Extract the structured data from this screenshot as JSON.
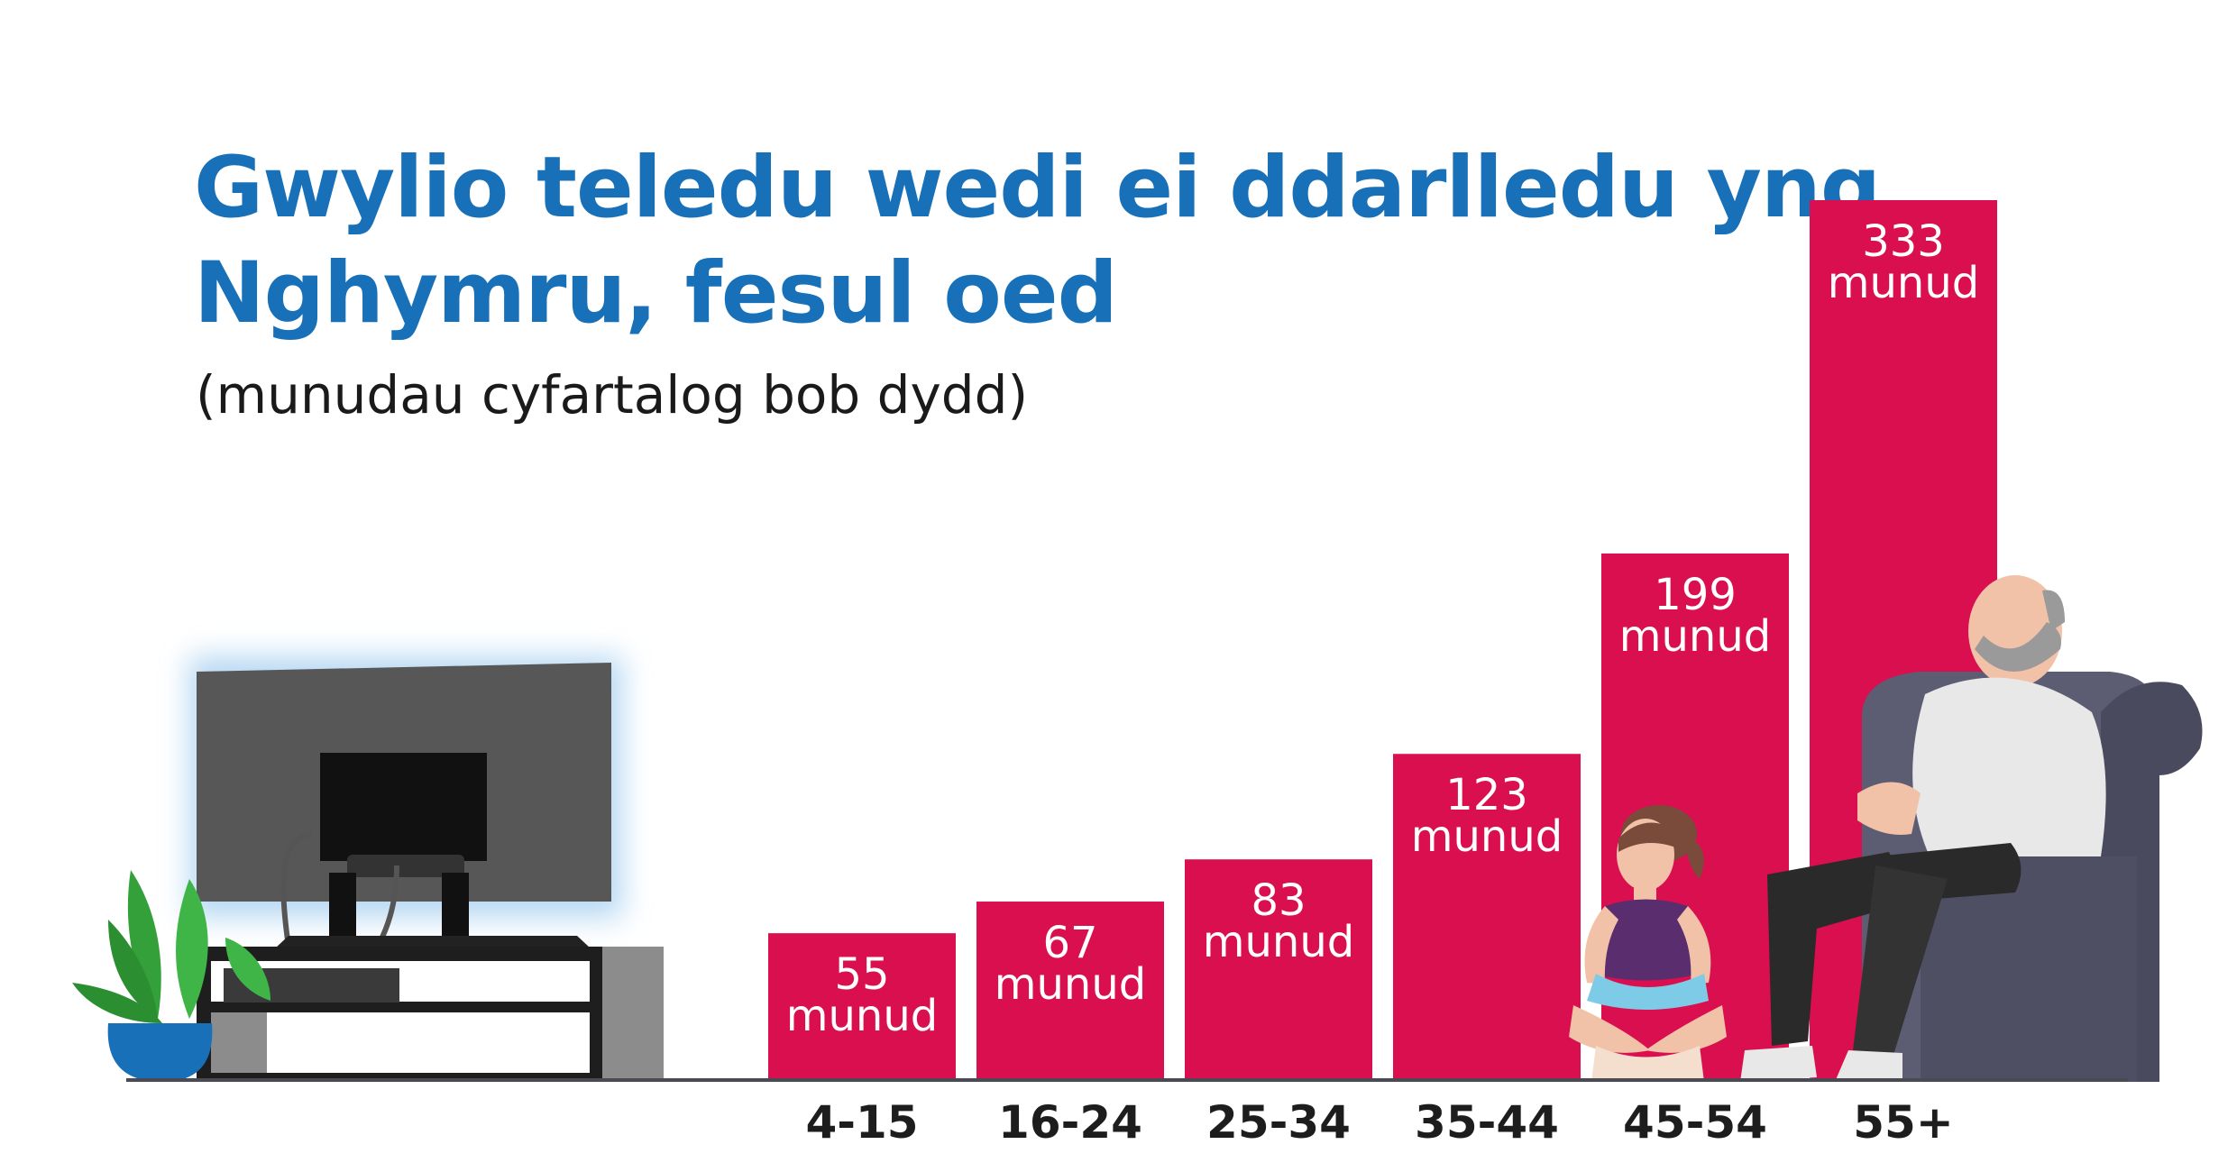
{
  "chart_data": {
    "type": "bar",
    "title": "Gwylio teledu wedi ei ddarlledu yng Nghymru, fesul oed",
    "subtitle": "(munudau cyfartalog bob dydd)",
    "categories": [
      "4-15",
      "16-24",
      "25-34",
      "35-44",
      "45-54",
      "55+"
    ],
    "values": [
      55,
      67,
      83,
      123,
      199,
      333
    ],
    "value_unit": "munud",
    "bar_color": "#d90f4f",
    "label_color": "#ffffff",
    "ylim": [
      0,
      333
    ],
    "grid": false,
    "legend": "none"
  },
  "colors": {
    "title": "#1770b8",
    "axis": "#4a4a52"
  },
  "illustrations": [
    "tv-on-stand",
    "potted-plant",
    "girl-sitting",
    "man-in-armchair"
  ]
}
